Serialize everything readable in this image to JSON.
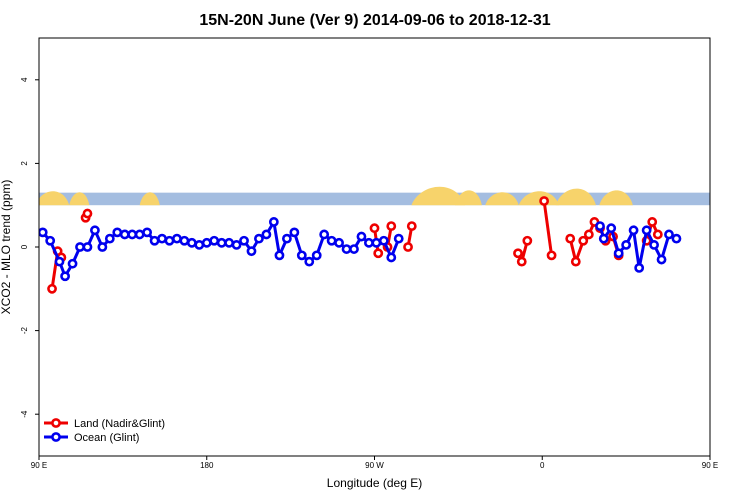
{
  "chart_data": {
    "type": "line",
    "title": "15N-20N June (Ver 9)   2014-09-06 to 2018-12-31",
    "xlabel": "Longitude (deg E)",
    "ylabel": "XCO2 - MLO trend (ppm)",
    "xlim": [
      90,
      450
    ],
    "ylim": [
      -5,
      5
    ],
    "x_ticks": [
      {
        "value": 90,
        "label": "90 E"
      },
      {
        "value": 180,
        "label": "180"
      },
      {
        "value": 270,
        "label": "90 W"
      },
      {
        "value": 360,
        "label": "0"
      },
      {
        "value": 450,
        "label": "90 E"
      },
      {
        "value": 540,
        "label": "180"
      }
    ],
    "y_ticks": [
      {
        "value": -4,
        "label": "-4"
      },
      {
        "value": -2,
        "label": "-2"
      },
      {
        "value": 0,
        "label": "0"
      },
      {
        "value": 2,
        "label": "2"
      },
      {
        "value": 4,
        "label": "4"
      }
    ],
    "legend_position": "bottom-left",
    "land_band": {
      "ymin": 1.0,
      "ymax": 1.3,
      "ocean_color": "#a4bde0",
      "land_color": "#f7d36b"
    },
    "series": [
      {
        "name": "Land (Nadir&Glint)",
        "color": "#ee0000",
        "segments": [
          [
            [
              97,
              -1.0
            ],
            [
              100,
              -0.1
            ],
            [
              102,
              -0.25
            ]
          ],
          [
            [
              115,
              0.7
            ],
            [
              116,
              0.8
            ]
          ],
          [
            [
              270,
              0.45
            ],
            [
              272,
              -0.15
            ]
          ],
          [
            [
              277,
              0.0
            ],
            [
              279,
              0.5
            ]
          ],
          [
            [
              288,
              0.0
            ],
            [
              290,
              0.5
            ]
          ],
          [
            [
              347,
              -0.15
            ],
            [
              349,
              -0.35
            ],
            [
              352,
              0.15
            ]
          ],
          [
            [
              361,
              1.1
            ],
            [
              365,
              -0.2
            ]
          ],
          [
            [
              375,
              0.2
            ],
            [
              378,
              -0.35
            ],
            [
              382,
              0.15
            ],
            [
              385,
              0.3
            ],
            [
              388,
              0.6
            ],
            [
              391,
              0.45
            ],
            [
              394,
              0.15
            ],
            [
              398,
              0.25
            ],
            [
              401,
              -0.2
            ]
          ],
          [
            [
              416,
              0.15
            ],
            [
              419,
              0.6
            ],
            [
              422,
              0.3
            ]
          ],
          [
            [
              456,
              -1.0
            ],
            [
              459,
              -0.1
            ],
            [
              462,
              -0.25
            ]
          ],
          [
            [
              473,
              0.7
            ],
            [
              474,
              0.8
            ]
          ]
        ]
      },
      {
        "name": "Ocean (Glint)",
        "color": "#0000ee",
        "segments": [
          [
            [
              92,
              0.35
            ],
            [
              96,
              0.15
            ],
            [
              101,
              -0.35
            ],
            [
              104,
              -0.7
            ],
            [
              108,
              -0.4
            ],
            [
              112,
              0.0
            ],
            [
              116,
              0.0
            ],
            [
              120,
              0.4
            ],
            [
              124,
              0.0
            ],
            [
              128,
              0.2
            ],
            [
              132,
              0.35
            ],
            [
              136,
              0.3
            ],
            [
              140,
              0.3
            ],
            [
              144,
              0.3
            ],
            [
              148,
              0.35
            ],
            [
              152,
              0.15
            ],
            [
              156,
              0.2
            ],
            [
              160,
              0.15
            ],
            [
              164,
              0.2
            ],
            [
              168,
              0.15
            ],
            [
              172,
              0.1
            ],
            [
              176,
              0.05
            ],
            [
              180,
              0.1
            ],
            [
              184,
              0.15
            ],
            [
              188,
              0.1
            ],
            [
              192,
              0.1
            ],
            [
              196,
              0.05
            ],
            [
              200,
              0.15
            ],
            [
              204,
              -0.1
            ],
            [
              208,
              0.2
            ],
            [
              212,
              0.3
            ],
            [
              216,
              0.6
            ],
            [
              219,
              -0.2
            ],
            [
              223,
              0.2
            ],
            [
              227,
              0.35
            ],
            [
              231,
              -0.2
            ],
            [
              235,
              -0.35
            ],
            [
              239,
              -0.2
            ],
            [
              243,
              0.3
            ],
            [
              247,
              0.15
            ],
            [
              251,
              0.1
            ],
            [
              255,
              -0.05
            ],
            [
              259,
              -0.05
            ],
            [
              263,
              0.25
            ],
            [
              267,
              0.1
            ],
            [
              271,
              0.1
            ],
            [
              275,
              0.15
            ],
            [
              279,
              -0.25
            ],
            [
              283,
              0.2
            ]
          ],
          [
            [
              391,
              0.5
            ],
            [
              393,
              0.2
            ],
            [
              397,
              0.45
            ],
            [
              401,
              -0.15
            ],
            [
              405,
              0.05
            ],
            [
              409,
              0.4
            ],
            [
              412,
              -0.5
            ],
            [
              416,
              0.4
            ],
            [
              420,
              0.05
            ],
            [
              424,
              -0.3
            ],
            [
              428,
              0.3
            ],
            [
              432,
              0.2
            ]
          ],
          [
            [
              462,
              -0.7
            ],
            [
              466,
              -0.4
            ],
            [
              470,
              0.0
            ],
            [
              474,
              0.0
            ],
            [
              478,
              0.4
            ],
            [
              482,
              -0.05
            ]
          ]
        ]
      }
    ]
  }
}
